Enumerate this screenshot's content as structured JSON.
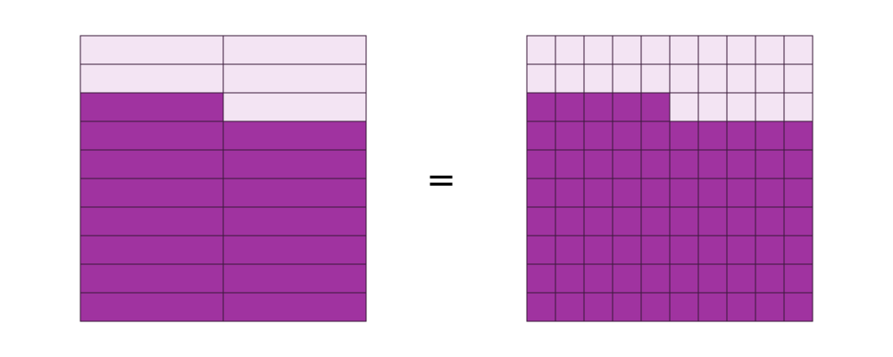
{
  "operator": "="
}
